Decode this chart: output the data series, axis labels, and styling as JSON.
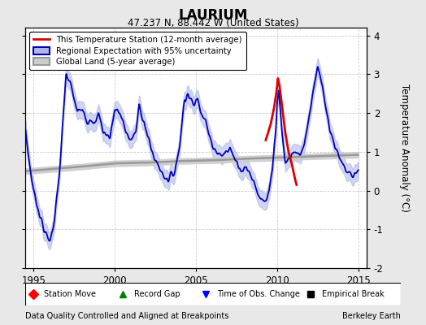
{
  "title": "LAURIUM",
  "subtitle": "47.237 N, 88.442 W (United States)",
  "ylabel": "Temperature Anomaly (°C)",
  "footer_left": "Data Quality Controlled and Aligned at Breakpoints",
  "footer_right": "Berkeley Earth",
  "xlim": [
    1994.5,
    2015.5
  ],
  "ylim": [
    -2.0,
    4.2
  ],
  "yticks": [
    -2,
    -1,
    0,
    1,
    2,
    3,
    4
  ],
  "xticks": [
    1995,
    2000,
    2005,
    2010,
    2015
  ],
  "bg_color": "#e8e8e8",
  "plot_bg_color": "#ffffff",
  "grid_color": "#cccccc",
  "blue_line_color": "#0000bb",
  "blue_fill_color": "#b0b8e8",
  "red_line_color": "#dd0000",
  "gray_line_color": "#999999",
  "gray_fill_color": "#cccccc",
  "legend1_label": "This Temperature Station (12-month average)",
  "legend2_label": "Regional Expectation with 95% uncertainty",
  "legend3_label": "Global Land (5-year average)"
}
